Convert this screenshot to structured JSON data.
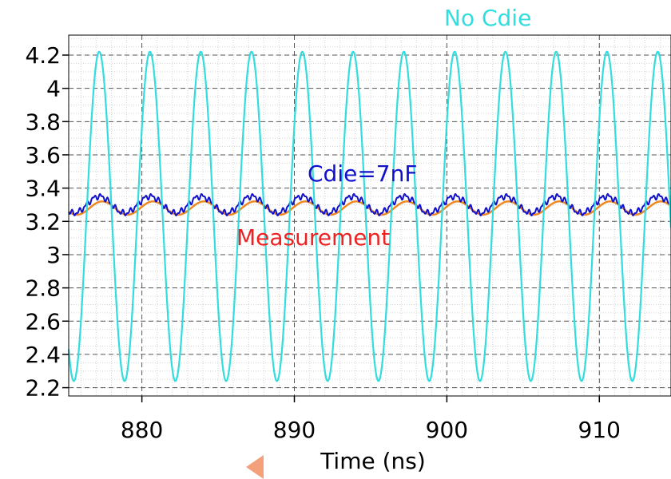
{
  "chart_data": {
    "type": "line",
    "title": "",
    "xlabel": "Time (ns)",
    "ylabel": "",
    "xlim": [
      875.2,
      914.7
    ],
    "ylim": [
      2.15,
      4.32
    ],
    "x_ticks": [
      880,
      890,
      900,
      910
    ],
    "y_ticks": [
      2.2,
      2.4,
      2.6,
      2.8,
      3,
      3.2,
      3.4,
      3.6,
      3.8,
      4,
      4.2
    ],
    "y_tick_labels": [
      "2.2",
      "2.4",
      "2.6",
      "2.8",
      "3",
      "3.2",
      "3.4",
      "3.6",
      "3.8",
      "4",
      "4.2"
    ],
    "x_tick_labels": [
      "880",
      "890",
      "900",
      "910"
    ],
    "grid": true,
    "series": [
      {
        "label": "No Cdie",
        "color": "#33dddd",
        "period_ns": 3.33,
        "peak_times_ns": [
          877.2,
          880.5,
          883.8,
          887.2,
          890.5,
          893.8,
          897.1,
          900.5,
          903.8,
          907.1,
          910.4,
          913.8
        ],
        "max": 4.22,
        "min": 2.24
      },
      {
        "label": "Cdie=7nF",
        "color": "#1111cc",
        "period_ns": 3.33,
        "peak_times_ns": [
          877.2,
          880.5,
          883.8,
          887.2,
          890.5,
          893.8,
          897.1,
          900.5,
          903.8,
          907.1,
          910.4,
          913.8
        ],
        "max": 3.36,
        "min": 3.24
      },
      {
        "label": "Measurement",
        "color": "#ee8822",
        "period_ns": 3.33,
        "peak_times_ns": [
          877.4,
          880.7,
          884.0,
          887.4,
          890.7,
          894.0,
          897.3,
          900.7,
          904.0,
          907.3,
          910.6,
          914.0
        ],
        "max": 3.32,
        "min": 3.24
      }
    ],
    "annotations": [
      {
        "text": "No Cdie",
        "color": "#33dddd"
      },
      {
        "text": "Cdie=7nF",
        "color": "#1111cc"
      },
      {
        "text": "Measurement",
        "color": "#ee2222"
      }
    ],
    "marker_color": "#f4a07a"
  }
}
